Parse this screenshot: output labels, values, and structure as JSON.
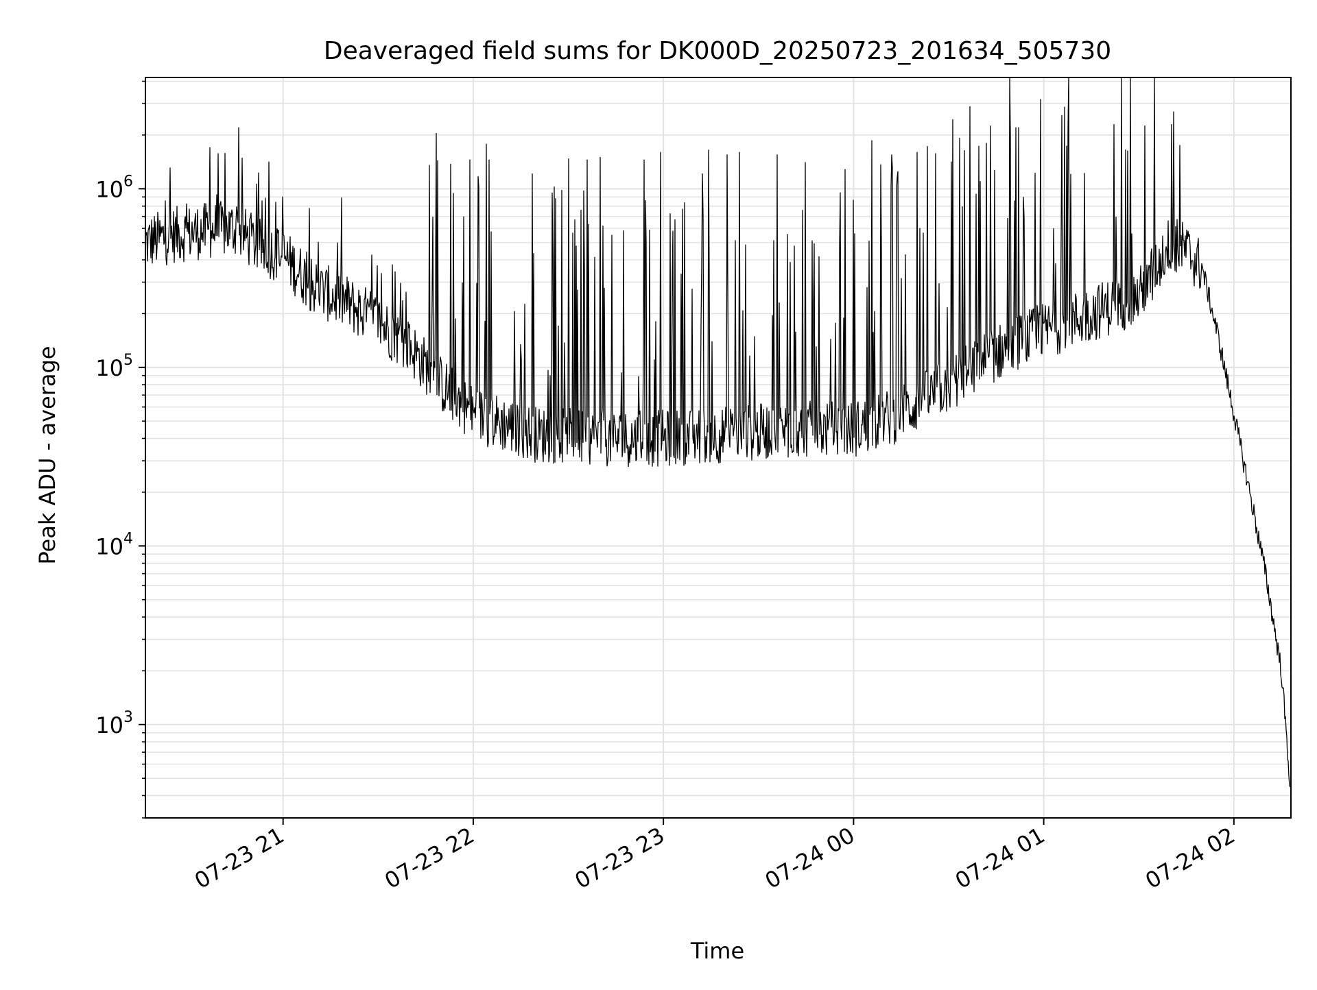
{
  "chart_data": {
    "type": "line",
    "title": "Deaveraged field sums for DK000D_20250723_201634_505730",
    "xlabel": "Time",
    "ylabel": "Peak ADU - average",
    "y_scale": "log",
    "ylim": [
      300,
      4200000
    ],
    "xlim": [
      "2025-07-23 20:16:34",
      "2025-07-24 02:18:00"
    ],
    "grid": true,
    "line_color": "#000000",
    "grid_color": "#e3e3e3",
    "x_ticks": [
      {
        "t": "2025-07-23 21:00",
        "label": "07-23 21"
      },
      {
        "t": "2025-07-23 22:00",
        "label": "07-23 22"
      },
      {
        "t": "2025-07-23 23:00",
        "label": "07-23 23"
      },
      {
        "t": "2025-07-24 00:00",
        "label": "07-24 00"
      },
      {
        "t": "2025-07-24 01:00",
        "label": "07-24 01"
      },
      {
        "t": "2025-07-24 02:00",
        "label": "07-24 02"
      }
    ],
    "y_ticks": [
      {
        "value": 1000,
        "base": "10",
        "exp": "3"
      },
      {
        "value": 10000,
        "base": "10",
        "exp": "4"
      },
      {
        "value": 100000,
        "base": "10",
        "exp": "5"
      },
      {
        "value": 1000000,
        "base": "10",
        "exp": "6"
      }
    ],
    "series": [
      {
        "x": [
          "2025-07-23 20:17",
          "2025-07-23 20:25",
          "2025-07-23 20:35",
          "2025-07-23 20:45",
          "2025-07-23 20:52",
          "2025-07-23 21:00",
          "2025-07-23 21:10",
          "2025-07-23 21:20",
          "2025-07-23 21:30",
          "2025-07-23 21:40",
          "2025-07-23 21:50",
          "2025-07-23 22:00",
          "2025-07-23 22:20",
          "2025-07-23 22:40",
          "2025-07-23 23:00",
          "2025-07-23 23:20",
          "2025-07-23 23:40",
          "2025-07-24 00:00",
          "2025-07-24 00:15",
          "2025-07-24 00:30",
          "2025-07-24 00:45",
          "2025-07-24 01:00",
          "2025-07-24 01:15",
          "2025-07-24 01:30",
          "2025-07-24 01:40",
          "2025-07-24 01:45",
          "2025-07-24 01:50",
          "2025-07-24 01:55",
          "2025-07-24 02:00",
          "2025-07-24 02:05",
          "2025-07-24 02:10",
          "2025-07-24 02:15",
          "2025-07-24 02:18"
        ],
        "y": [
          500000,
          550000,
          580000,
          600000,
          480000,
          420000,
          280000,
          230000,
          180000,
          130000,
          80000,
          55000,
          42000,
          40000,
          40000,
          42000,
          45000,
          45000,
          55000,
          80000,
          120000,
          160000,
          200000,
          250000,
          500000,
          450000,
          360000,
          150000,
          55000,
          20000,
          7000,
          2000,
          400
        ],
        "spikes": [
          {
            "t": "2025-07-23 20:37",
            "y": 1700000
          },
          {
            "t": "2025-07-23 20:46",
            "y": 2200000
          },
          {
            "t": "2025-07-23 22:05",
            "y": 1450000
          },
          {
            "t": "2025-07-23 22:36",
            "y": 1450000
          },
          {
            "t": "2025-07-23 22:40",
            "y": 1500000
          },
          {
            "t": "2025-07-23 22:54",
            "y": 1450000
          },
          {
            "t": "2025-07-23 22:59",
            "y": 1600000
          },
          {
            "t": "2025-07-23 23:20",
            "y": 1550000
          },
          {
            "t": "2025-07-23 23:24",
            "y": 1600000
          },
          {
            "t": "2025-07-23 23:36",
            "y": 1550000
          },
          {
            "t": "2025-07-24 00:12",
            "y": 1550000
          },
          {
            "t": "2025-07-24 00:20",
            "y": 1600000
          },
          {
            "t": "2025-07-24 00:42",
            "y": 1800000
          },
          {
            "t": "2025-07-24 00:52",
            "y": 2200000
          },
          {
            "t": "2025-07-24 01:41",
            "y": 2700000
          },
          {
            "t": "2025-07-24 01:43",
            "y": 1750000
          }
        ]
      }
    ]
  }
}
